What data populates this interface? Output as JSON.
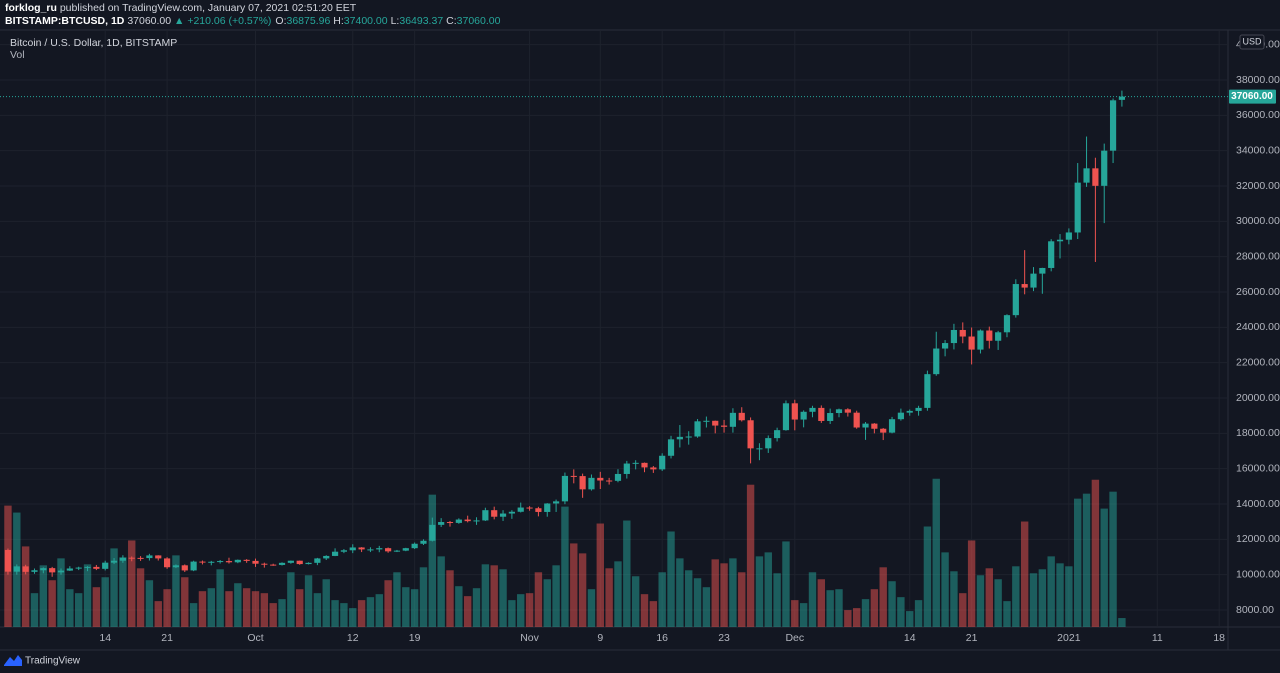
{
  "header": {
    "publisher": "forklog_ru",
    "published": "published on TradingView.com, January 07, 2021 02:51:20 EET",
    "symbol": "BITSTAMP:BTCUSD, 1D",
    "last": "37060.00",
    "change": "▲ +210.06 (+0.57%)",
    "ohlc": [
      {
        "label": "O:",
        "value": "36875.96"
      },
      {
        "label": "H:",
        "value": "37400.00"
      },
      {
        "label": "L:",
        "value": "36493.37"
      },
      {
        "label": "C:",
        "value": "37060.00"
      }
    ]
  },
  "footer": {
    "brand": "TradingView"
  },
  "chart_data": {
    "type": "candlestick",
    "title": "Bitcoin / U.S. Dollar, 1D, BITSTAMP",
    "subtitle": "Vol",
    "currency": "USD",
    "last_price_label": "37060.00",
    "up_color": "#26a69a",
    "down_color": "#ef5350",
    "grid": true,
    "xlim": [
      -0.9,
      138
    ],
    "ylim": [
      7038,
      40830
    ],
    "vlim": [
      0,
      60000
    ],
    "xticks": [
      {
        "value": 11,
        "label": "14"
      },
      {
        "value": 18,
        "label": "21"
      },
      {
        "value": 28,
        "label": "Oct"
      },
      {
        "value": 39,
        "label": "12"
      },
      {
        "value": 46,
        "label": "19"
      },
      {
        "value": 59,
        "label": "Nov"
      },
      {
        "value": 67,
        "label": "9"
      },
      {
        "value": 74,
        "label": "16"
      },
      {
        "value": 81,
        "label": "23"
      },
      {
        "value": 89,
        "label": "Dec"
      },
      {
        "value": 102,
        "label": "14"
      },
      {
        "value": 109,
        "label": "21"
      },
      {
        "value": 120,
        "label": "2021"
      },
      {
        "value": 130,
        "label": "11"
      },
      {
        "value": 137,
        "label": "18"
      }
    ],
    "yticks": [
      {
        "value": 8000,
        "label": "8000.00"
      },
      {
        "value": 10000,
        "label": "10000.00"
      },
      {
        "value": 12000,
        "label": "12000.00"
      },
      {
        "value": 14000,
        "label": "14000.00"
      },
      {
        "value": 16000,
        "label": "16000.00"
      },
      {
        "value": 18000,
        "label": "18000.00"
      },
      {
        "value": 20000,
        "label": "20000.00"
      },
      {
        "value": 22000,
        "label": "22000.00"
      },
      {
        "value": 24000,
        "label": "24000.00"
      },
      {
        "value": 26000,
        "label": "26000.00"
      },
      {
        "value": 28000,
        "label": "28000.00"
      },
      {
        "value": 30000,
        "label": "30000.00"
      },
      {
        "value": 32000,
        "label": "32000.00"
      },
      {
        "value": 34000,
        "label": "34000.00"
      },
      {
        "value": 36000,
        "label": "36000.00"
      },
      {
        "value": 38000,
        "label": "38000.00"
      },
      {
        "value": 40000,
        "label": "40000.00"
      }
    ],
    "open": [
      11400,
      10170,
      10470,
      10160,
      10250,
      10370,
      10130,
      10230,
      10350,
      10400,
      10440,
      10330,
      10680,
      10790,
      10960,
      10950,
      10940,
      11090,
      10920,
      10420,
      10530,
      10240,
      10740,
      10690,
      10730,
      10770,
      10700,
      10840,
      10780,
      10620,
      10570,
      10550,
      10670,
      10790,
      10600,
      10670,
      10920,
      11060,
      11300,
      11380,
      11540,
      11430,
      11430,
      11500,
      11320,
      11360,
      11500,
      11750,
      11920,
      12820,
      12980,
      12930,
      13120,
      13030,
      13070,
      13650,
      13280,
      13460,
      13560,
      13800,
      13760,
      13550,
      14030,
      14150,
      15590,
      15580,
      14830,
      15480,
      15330,
      15310,
      15700,
      16290,
      16330,
      16070,
      15960,
      16730,
      17660,
      17800,
      17820,
      18680,
      18710,
      18440,
      18370,
      19160,
      18740,
      17150,
      17150,
      17730,
      18180,
      19700,
      18780,
      19220,
      19440,
      18700,
      19150,
      19360,
      19170,
      18330,
      18550,
      18260,
      18040,
      18800,
      19170,
      19270,
      19440,
      21350,
      22800,
      23110,
      23850,
      23480,
      22740,
      23820,
      23240,
      23720,
      24690,
      26450,
      26250,
      27040,
      27360,
      28870,
      28960,
      29370,
      32190,
      33000,
      32010,
      34000,
      36875.96
    ],
    "high": [
      11480,
      10580,
      10560,
      10350,
      10410,
      10440,
      10350,
      10480,
      10450,
      10480,
      10550,
      10790,
      10940,
      11100,
      11030,
      11050,
      11180,
      11100,
      10990,
      10580,
      10580,
      10790,
      10800,
      10780,
      10830,
      10960,
      10860,
      10880,
      10910,
      10680,
      10620,
      10700,
      10800,
      10800,
      10700,
      10950,
      11100,
      11490,
      11450,
      11720,
      11560,
      11550,
      11630,
      11540,
      11400,
      11520,
      11820,
      12000,
      13230,
      13200,
      13040,
      13190,
      13340,
      13250,
      13790,
      13850,
      13650,
      13650,
      14080,
      13880,
      13840,
      14050,
      14250,
      15780,
      15960,
      15720,
      15670,
      15820,
      15480,
      15970,
      16440,
      16480,
      16350,
      16150,
      16870,
      17860,
      18470,
      18120,
      18810,
      18950,
      18720,
      18760,
      19420,
      19480,
      18900,
      17440,
      17880,
      18320,
      19860,
      19900,
      19300,
      19560,
      19580,
      19400,
      19400,
      19420,
      19280,
      18640,
      18580,
      18300,
      18930,
      19400,
      19350,
      19560,
      21550,
      23750,
      23280,
      24200,
      24280,
      23990,
      23880,
      24040,
      23800,
      24740,
      26720,
      28370,
      27410,
      27370,
      28990,
      29280,
      29600,
      33300,
      34800,
      33600,
      34400,
      36950,
      37400
    ],
    "low": [
      10000,
      10000,
      10020,
      10050,
      10080,
      9880,
      10000,
      10210,
      10260,
      10200,
      10260,
      10240,
      10600,
      10670,
      10760,
      10780,
      10800,
      10800,
      10330,
      10370,
      10150,
      10200,
      10580,
      10530,
      10630,
      10630,
      10650,
      10670,
      10440,
      10400,
      10500,
      10520,
      10620,
      10560,
      10580,
      10540,
      10830,
      11050,
      11220,
      11220,
      11280,
      11280,
      11270,
      11240,
      11280,
      11330,
      11450,
      11680,
      11880,
      12700,
      12720,
      12880,
      12960,
      12820,
      13040,
      13130,
      13040,
      13160,
      13520,
      13620,
      13300,
      13280,
      13550,
      13990,
      15170,
      14350,
      14760,
      14850,
      15100,
      15230,
      15440,
      15960,
      15800,
      15760,
      15870,
      16580,
      17200,
      17360,
      17750,
      18330,
      18000,
      18040,
      18040,
      18670,
      16300,
      16480,
      16890,
      17540,
      18150,
      18170,
      18340,
      18910,
      18590,
      18530,
      18910,
      18950,
      18260,
      17630,
      18000,
      17620,
      18000,
      18720,
      19000,
      19000,
      19280,
      21260,
      22360,
      22750,
      23100,
      21900,
      22520,
      22800,
      22720,
      23440,
      24550,
      25870,
      26050,
      25900,
      27170,
      27900,
      28700,
      29000,
      31950,
      27700,
      29900,
      33300,
      36493.37
    ],
    "close": [
      10170,
      10470,
      10160,
      10250,
      10370,
      10130,
      10230,
      10350,
      10400,
      10440,
      10330,
      10680,
      10790,
      10960,
      10950,
      10940,
      11090,
      10920,
      10420,
      10530,
      10240,
      10740,
      10690,
      10730,
      10770,
      10700,
      10840,
      10780,
      10620,
      10570,
      10550,
      10670,
      10790,
      10600,
      10670,
      10920,
      11060,
      11300,
      11380,
      11540,
      11430,
      11430,
      11500,
      11320,
      11360,
      11500,
      11750,
      11920,
      12820,
      12980,
      12930,
      13120,
      13030,
      13070,
      13650,
      13280,
      13460,
      13560,
      13800,
      13760,
      13550,
      14030,
      14150,
      15590,
      15580,
      14830,
      15480,
      15330,
      15310,
      15700,
      16290,
      16330,
      16070,
      15960,
      16730,
      17660,
      17800,
      17820,
      18680,
      18710,
      18440,
      18370,
      19160,
      18740,
      17150,
      17150,
      17730,
      18180,
      19700,
      18780,
      19220,
      19440,
      18700,
      19150,
      19360,
      19170,
      18330,
      18550,
      18260,
      18040,
      18800,
      19170,
      19270,
      19440,
      21350,
      22800,
      23110,
      23850,
      23480,
      22740,
      23820,
      23240,
      23720,
      24690,
      26450,
      26250,
      27040,
      27360,
      28870,
      28960,
      29370,
      32190,
      33000,
      32010,
      34000,
      36849.94,
      37060
    ],
    "volume": [
      12200,
      11500,
      8100,
      3400,
      6200,
      4700,
      6900,
      3800,
      3400,
      6300,
      4000,
      5000,
      7900,
      7000,
      8700,
      5900,
      4700,
      2600,
      3800,
      7200,
      5000,
      2400,
      3600,
      3900,
      5800,
      3600,
      4400,
      3900,
      3600,
      3400,
      2400,
      2800,
      5500,
      3800,
      5200,
      3400,
      4800,
      2700,
      2400,
      1900,
      2700,
      3000,
      3300,
      4700,
      5500,
      4000,
      3800,
      6000,
      13300,
      7100,
      5700,
      4100,
      3100,
      3900,
      6300,
      6200,
      5800,
      2700,
      3300,
      3400,
      5500,
      4800,
      6200,
      12100,
      8400,
      7400,
      3800,
      10400,
      5900,
      6600,
      10700,
      5100,
      3300,
      2600,
      5500,
      9600,
      6900,
      5700,
      4900,
      4000,
      6800,
      6400,
      6900,
      5500,
      14300,
      7100,
      7500,
      5400,
      8600,
      2700,
      2400,
      5500,
      4800,
      3700,
      3800,
      1700,
      1900,
      2800,
      3800,
      6000,
      4600,
      3000,
      1600,
      2700,
      10100,
      14900,
      7500,
      5600,
      3400,
      8700,
      5200,
      5900,
      4800,
      2600,
      6100,
      10600,
      5400,
      5800,
      7100,
      6400,
      6100,
      12900,
      13400,
      14800,
      11900,
      13600,
      900
    ]
  }
}
